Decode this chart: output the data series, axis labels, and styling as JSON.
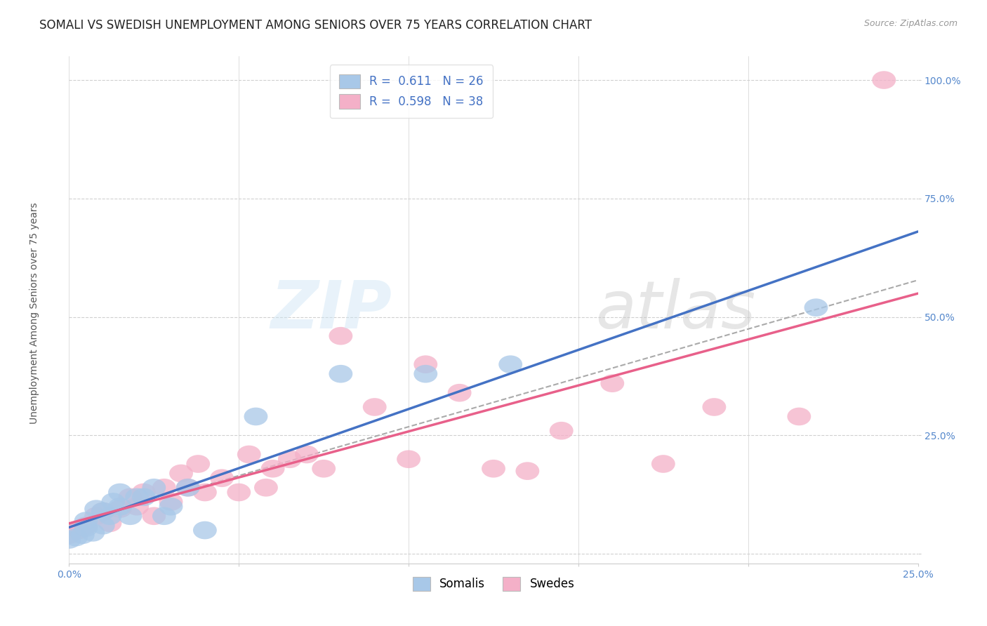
{
  "title": "SOMALI VS SWEDISH UNEMPLOYMENT AMONG SENIORS OVER 75 YEARS CORRELATION CHART",
  "source": "Source: ZipAtlas.com",
  "ylabel": "Unemployment Among Seniors over 75 years",
  "xlim": [
    0.0,
    0.25
  ],
  "ylim": [
    -0.02,
    1.05
  ],
  "xticks": [
    0.0,
    0.05,
    0.1,
    0.15,
    0.2,
    0.25
  ],
  "xticklabels": [
    "0.0%",
    "",
    "",
    "",
    "",
    "25.0%"
  ],
  "yticks": [
    0.0,
    0.25,
    0.5,
    0.75,
    1.0
  ],
  "yticklabels": [
    "",
    "25.0%",
    "50.0%",
    "75.0%",
    "100.0%"
  ],
  "somali_color": "#a8c8e8",
  "swede_color": "#f4b0c8",
  "somali_line_color": "#4472c4",
  "swede_line_color": "#e8608a",
  "dash_line_color": "#aaaaaa",
  "somali_R": 0.611,
  "somali_N": 26,
  "swede_R": 0.598,
  "swede_N": 38,
  "legend_label_somali": "Somalis",
  "legend_label_swede": "Swedes",
  "somali_x": [
    0.0,
    0.002,
    0.004,
    0.005,
    0.005,
    0.007,
    0.008,
    0.01,
    0.01,
    0.012,
    0.013,
    0.015,
    0.015,
    0.018,
    0.02,
    0.022,
    0.025,
    0.028,
    0.03,
    0.035,
    0.04,
    0.055,
    0.08,
    0.105,
    0.13,
    0.22
  ],
  "somali_y": [
    0.03,
    0.035,
    0.04,
    0.055,
    0.07,
    0.045,
    0.095,
    0.06,
    0.09,
    0.08,
    0.11,
    0.1,
    0.13,
    0.08,
    0.12,
    0.12,
    0.14,
    0.08,
    0.1,
    0.14,
    0.05,
    0.29,
    0.38,
    0.38,
    0.4,
    0.52
  ],
  "swede_x": [
    0.0,
    0.003,
    0.005,
    0.008,
    0.01,
    0.012,
    0.015,
    0.018,
    0.02,
    0.022,
    0.025,
    0.028,
    0.03,
    0.033,
    0.035,
    0.038,
    0.04,
    0.045,
    0.05,
    0.053,
    0.058,
    0.06,
    0.065,
    0.07,
    0.075,
    0.08,
    0.09,
    0.1,
    0.105,
    0.115,
    0.125,
    0.135,
    0.145,
    0.16,
    0.175,
    0.19,
    0.215,
    0.24
  ],
  "swede_y": [
    0.04,
    0.05,
    0.06,
    0.08,
    0.09,
    0.065,
    0.095,
    0.12,
    0.1,
    0.13,
    0.08,
    0.14,
    0.11,
    0.17,
    0.14,
    0.19,
    0.13,
    0.16,
    0.13,
    0.21,
    0.14,
    0.18,
    0.2,
    0.21,
    0.18,
    0.46,
    0.31,
    0.2,
    0.4,
    0.34,
    0.18,
    0.175,
    0.26,
    0.36,
    0.19,
    0.31,
    0.29,
    1.0
  ],
  "grid_color": "#d0d0d0",
  "title_fontsize": 12,
  "axis_label_fontsize": 10,
  "tick_fontsize": 10,
  "legend_fontsize": 12,
  "tick_color": "#5588cc",
  "legend_text_color": "#4472c4"
}
